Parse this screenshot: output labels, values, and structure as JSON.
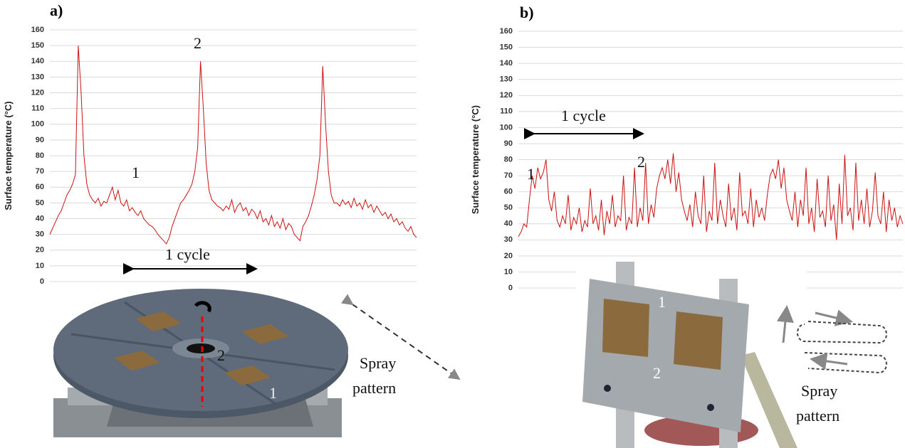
{
  "chart_data": [
    {
      "type": "line",
      "panel_label": "a)",
      "y_label": "Surface temperature (°C)",
      "color": "#cc1111",
      "ylim": [
        0,
        160
      ],
      "yticks": [
        0,
        10,
        20,
        30,
        40,
        50,
        60,
        70,
        80,
        90,
        100,
        110,
        120,
        130,
        140,
        150,
        160
      ],
      "grid": true,
      "annotations": [
        "1",
        "2",
        "1 cycle"
      ],
      "values": [
        30,
        34,
        38,
        42,
        45,
        50,
        55,
        58,
        62,
        68,
        150,
        120,
        80,
        62,
        55,
        52,
        50,
        53,
        48,
        51,
        50,
        55,
        60,
        52,
        58,
        50,
        48,
        52,
        45,
        47,
        44,
        42,
        45,
        40,
        38,
        36,
        35,
        33,
        30,
        28,
        26,
        24,
        28,
        35,
        40,
        45,
        50,
        52,
        55,
        58,
        62,
        70,
        85,
        140,
        110,
        75,
        58,
        52,
        50,
        48,
        47,
        45,
        48,
        46,
        52,
        44,
        48,
        50,
        45,
        47,
        42,
        46,
        44,
        40,
        45,
        38,
        40,
        36,
        42,
        35,
        38,
        34,
        40,
        33,
        37,
        35,
        30,
        28,
        26,
        35,
        38,
        42,
        48,
        55,
        65,
        80,
        137,
        100,
        70,
        55,
        50,
        50,
        48,
        52,
        49,
        51,
        47,
        53,
        48,
        50,
        46,
        52,
        47,
        49,
        44,
        48,
        45,
        42,
        44,
        40,
        43,
        38,
        40,
        36,
        38,
        34,
        32,
        35,
        30,
        28
      ]
    },
    {
      "type": "line",
      "panel_label": "b)",
      "y_label": "Surface temperature (°C)",
      "color": "#cc1111",
      "ylim": [
        0,
        160
      ],
      "yticks": [
        0,
        10,
        20,
        30,
        40,
        50,
        60,
        70,
        80,
        90,
        100,
        110,
        120,
        130,
        140,
        150,
        160
      ],
      "grid": true,
      "annotations": [
        "1",
        "2",
        "1 cycle"
      ],
      "values": [
        32,
        35,
        40,
        38,
        55,
        70,
        62,
        75,
        68,
        72,
        80,
        55,
        48,
        60,
        42,
        38,
        45,
        40,
        58,
        36,
        44,
        40,
        50,
        35,
        42,
        38,
        62,
        40,
        45,
        36,
        55,
        33,
        48,
        40,
        58,
        38,
        45,
        42,
        70,
        36,
        44,
        40,
        75,
        38,
        50,
        42,
        78,
        40,
        52,
        44,
        62,
        70,
        75,
        68,
        80,
        65,
        84,
        60,
        72,
        55,
        48,
        42,
        52,
        38,
        60,
        45,
        40,
        70,
        35,
        48,
        42,
        78,
        40,
        55,
        45,
        38,
        65,
        42,
        50,
        36,
        72,
        45,
        48,
        40,
        62,
        38,
        55,
        44,
        50,
        42,
        58,
        70,
        74,
        68,
        80,
        62,
        75,
        55,
        48,
        42,
        60,
        38,
        55,
        45,
        75,
        40,
        50,
        35,
        68,
        44,
        48,
        38,
        70,
        42,
        52,
        30,
        65,
        40,
        83,
        45,
        50,
        36,
        78,
        42,
        55,
        40,
        62,
        38,
        48,
        72,
        45,
        40,
        60,
        35,
        55,
        42,
        50,
        38,
        45,
        40
      ]
    }
  ],
  "illustrations": [
    {
      "labels": [
        "2",
        "1"
      ],
      "spray_label": [
        "Spray",
        "pattern"
      ]
    },
    {
      "labels": [
        "1",
        "2"
      ],
      "spray_label": [
        "Spray",
        "pattern"
      ]
    }
  ]
}
